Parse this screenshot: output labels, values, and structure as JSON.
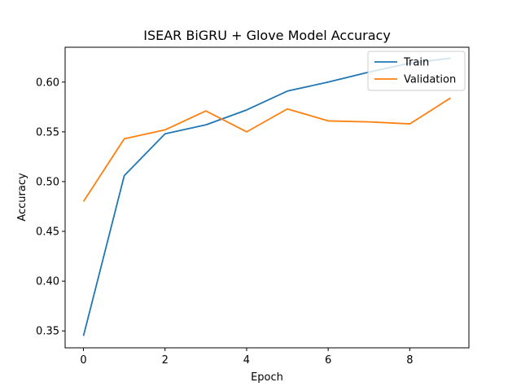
{
  "chart_data": {
    "type": "line",
    "title": "ISEAR BiGRU + Glove Model Accuracy",
    "xlabel": "Epoch",
    "ylabel": "Accuracy",
    "xlim": [
      -0.45,
      9.45
    ],
    "ylim": [
      0.333,
      0.635
    ],
    "xticks": [
      0,
      2,
      4,
      6,
      8
    ],
    "xtick_labels": [
      "0",
      "2",
      "4",
      "6",
      "8"
    ],
    "yticks": [
      0.35,
      0.4,
      0.45,
      0.5,
      0.55,
      0.6
    ],
    "ytick_labels": [
      "0.35",
      "0.40",
      "0.45",
      "0.50",
      "0.55",
      "0.60"
    ],
    "grid": false,
    "legend": "top-right",
    "x": [
      0,
      1,
      2,
      3,
      4,
      5,
      6,
      7,
      8,
      9
    ],
    "series": [
      {
        "name": "Train",
        "color": "#1f77b4",
        "values": [
          0.345,
          0.506,
          0.548,
          0.557,
          0.572,
          0.591,
          0.6,
          0.61,
          0.619,
          0.624
        ]
      },
      {
        "name": "Validation",
        "color": "#ff7f0e",
        "values": [
          0.48,
          0.543,
          0.552,
          0.571,
          0.55,
          0.573,
          0.561,
          0.56,
          0.558,
          0.584
        ]
      }
    ]
  }
}
